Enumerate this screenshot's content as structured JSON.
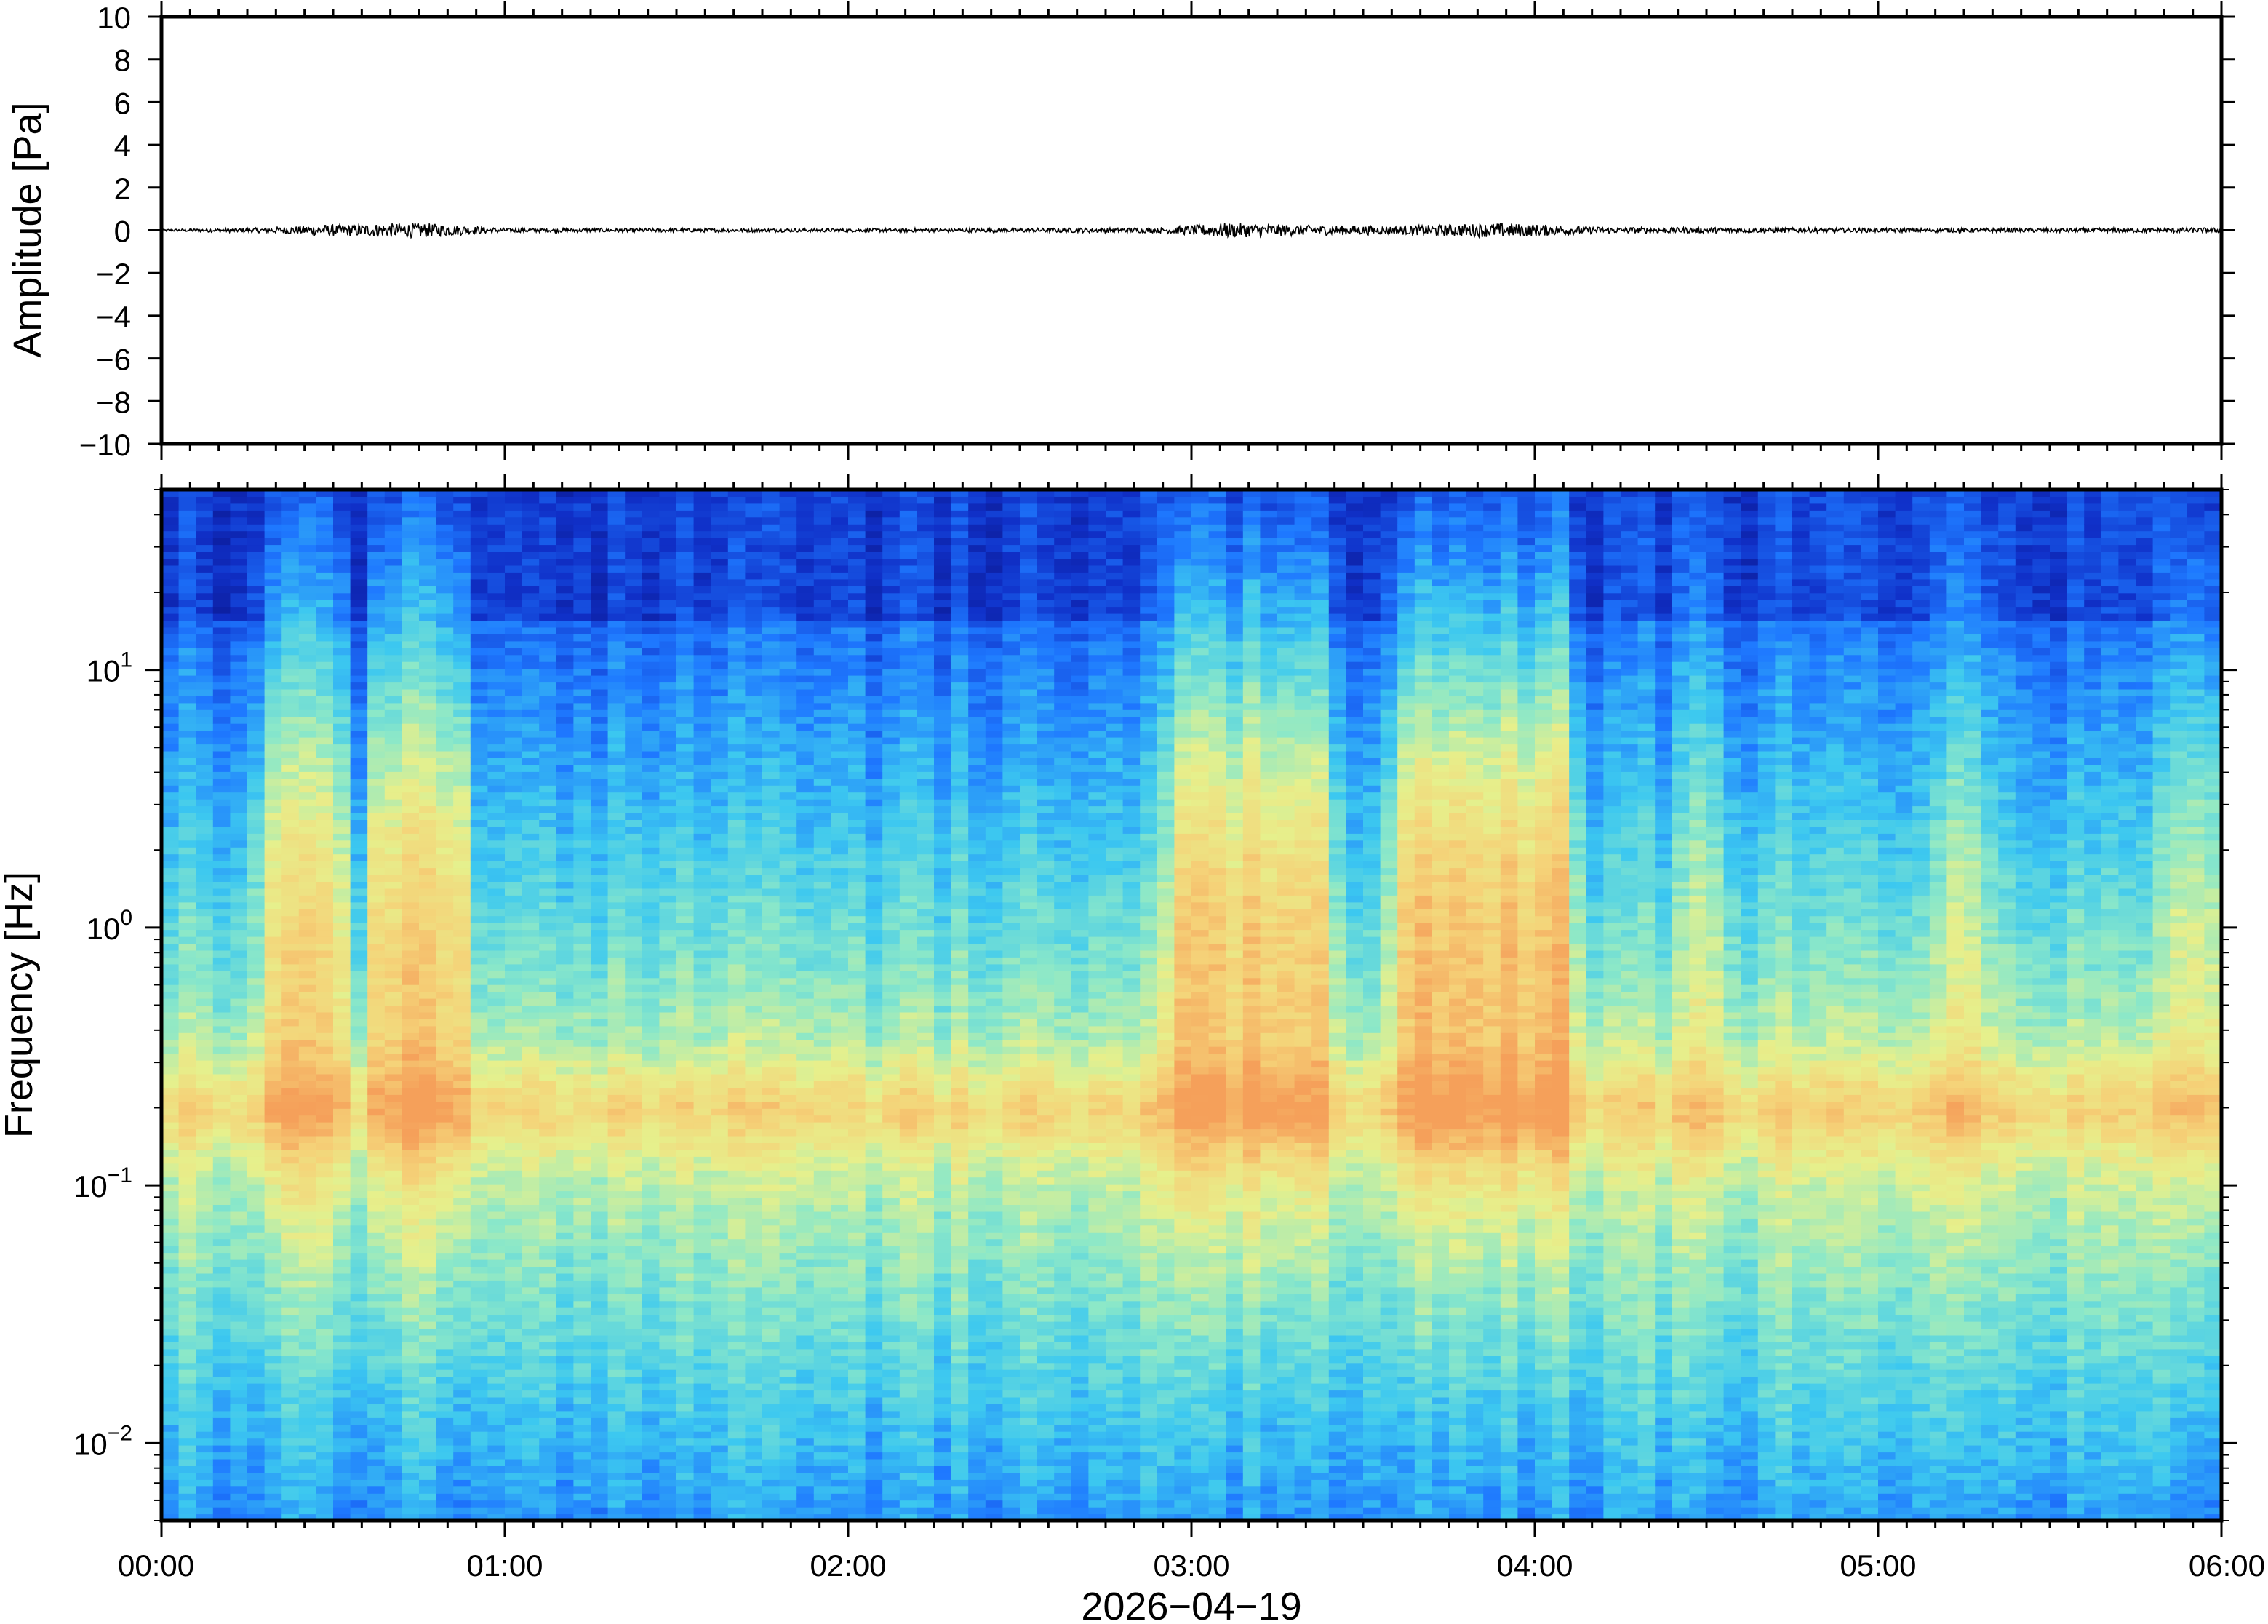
{
  "chart_data": [
    {
      "type": "line",
      "ylabel": "Amplitude [Pa]",
      "ylim": [
        -10,
        10
      ],
      "yticks": [
        "10",
        "8",
        "6",
        "4",
        "2",
        "0",
        "−2",
        "−4",
        "−6",
        "−8",
        "−10"
      ],
      "ytick_values": [
        10,
        8,
        6,
        4,
        2,
        0,
        -2,
        -4,
        -6,
        -8,
        -10
      ],
      "xlim": [
        "00:00",
        "06:00"
      ],
      "series": [
        {
          "x_hours": [
            0.0,
            0.3,
            0.45,
            0.75,
            1.0,
            2.0,
            2.9,
            3.1,
            3.3,
            3.6,
            3.9,
            4.2,
            5.0,
            5.5,
            6.0
          ],
          "envelope_pa": [
            0.05,
            0.12,
            0.25,
            0.35,
            0.1,
            0.08,
            0.12,
            0.35,
            0.25,
            0.2,
            0.35,
            0.15,
            0.1,
            0.1,
            0.12
          ]
        }
      ]
    },
    {
      "type": "heatmap",
      "ylabel": "Frequency [Hz]",
      "yscale": "log",
      "ylim": [
        0.005,
        50
      ],
      "yticks": [
        {
          "value": 10,
          "base": "10",
          "exp": "1"
        },
        {
          "value": 1,
          "base": "10",
          "exp": "0"
        },
        {
          "value": 0.1,
          "base": "10",
          "exp": "−1"
        },
        {
          "value": 0.01,
          "base": "10",
          "exp": "−2"
        }
      ],
      "xlabel": "2026−04−19",
      "xticks": [
        "00:00",
        "01:00",
        "02:00",
        "03:00",
        "04:00",
        "05:00",
        "06:00"
      ],
      "xtick_hours": [
        0,
        1,
        2,
        3,
        4,
        5,
        6
      ],
      "colormap": [
        "#0a0f7a",
        "#1030c8",
        "#1e78ff",
        "#3cc8f0",
        "#8ce8c8",
        "#e6f08c",
        "#f5d278",
        "#f5a05a"
      ],
      "energy_events_hours": [
        {
          "start": 0.3,
          "end": 0.52,
          "strength": 0.75
        },
        {
          "start": 0.62,
          "end": 0.88,
          "strength": 0.85
        },
        {
          "start": 2.95,
          "end": 3.4,
          "strength": 0.9
        },
        {
          "start": 3.6,
          "end": 4.1,
          "strength": 1.0
        },
        {
          "start": 4.45,
          "end": 4.55,
          "strength": 0.35
        },
        {
          "start": 5.2,
          "end": 5.3,
          "strength": 0.4
        },
        {
          "start": 5.85,
          "end": 6.0,
          "strength": 0.5
        }
      ],
      "microseism_peak_hz": 0.2
    }
  ]
}
